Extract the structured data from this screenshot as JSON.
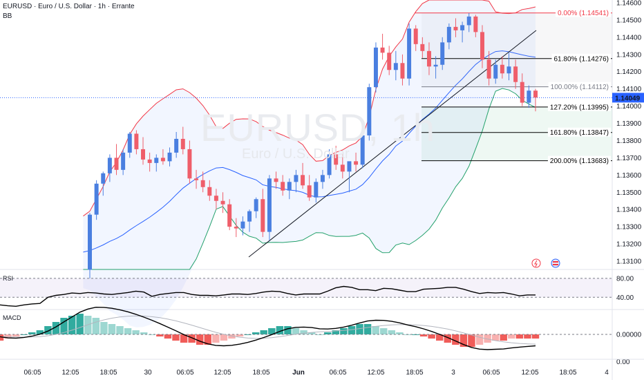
{
  "header": {
    "title": "EURUSD · Euro / U.S. Dollar · 1h · Errante",
    "indicator": "BB"
  },
  "watermark": {
    "symbol": "EURUSD, 1h",
    "name": "Euro / U.S. Dollar"
  },
  "panes": {
    "rsi_label": "RSI",
    "macd_label": "MACD"
  },
  "colors": {
    "up": "#4a7fe0",
    "down": "#ef5e6a",
    "bb_upper": "#f23645",
    "bb_basis": "#2962ff",
    "bb_lower": "#22a06b",
    "rsi_line": "#000000",
    "macd_line": "#000000",
    "signal_line": "#b2b5be",
    "hist_pos": "#26a69a",
    "hist_neg": "#ef5350",
    "price_label_bg": "#2962ff"
  },
  "chart_data": [
    {
      "type": "candlestick",
      "title": "EURUSD · Euro / U.S. Dollar · 1h · Errante",
      "y_ticks": [
        "1.14600",
        "1.14500",
        "1.14400",
        "1.14300",
        "1.14200",
        "1.14100",
        "1.14000",
        "1.13900",
        "1.13800",
        "1.13700",
        "1.13600",
        "1.13500",
        "1.13400",
        "1.13300",
        "1.13200",
        "1.13100"
      ],
      "ylim": [
        1.1307,
        1.1461
      ],
      "x_ticks": [
        "06:05",
        "12:05",
        "18:05",
        "30",
        "06:05",
        "12:05",
        "18:05",
        "Jun",
        "06:05",
        "12:05",
        "18:05",
        "3",
        "06:05",
        "12:05",
        "18:05",
        "4"
      ],
      "last_price": "1.14049",
      "candles": [
        [
          1.1305,
          1.1338,
          1.13,
          1.1337
        ],
        [
          1.1337,
          1.1357,
          1.1334,
          1.1355
        ],
        [
          1.1355,
          1.1362,
          1.1348,
          1.1361
        ],
        [
          1.1361,
          1.1372,
          1.1356,
          1.137
        ],
        [
          1.137,
          1.1378,
          1.136,
          1.1363
        ],
        [
          1.1363,
          1.1375,
          1.136,
          1.1373
        ],
        [
          1.1373,
          1.1385,
          1.137,
          1.1384
        ],
        [
          1.1384,
          1.1386,
          1.1372,
          1.1375
        ],
        [
          1.1375,
          1.1382,
          1.1366,
          1.1369
        ],
        [
          1.1369,
          1.1373,
          1.1362,
          1.1367
        ],
        [
          1.1367,
          1.1372,
          1.1362,
          1.137
        ],
        [
          1.137,
          1.1375,
          1.1366,
          1.1368
        ],
        [
          1.1368,
          1.1376,
          1.1365,
          1.1373
        ],
        [
          1.1373,
          1.1385,
          1.137,
          1.1381
        ],
        [
          1.1381,
          1.1388,
          1.1372,
          1.1375
        ],
        [
          1.1375,
          1.138,
          1.1355,
          1.1358
        ],
        [
          1.1358,
          1.1363,
          1.1352,
          1.1357
        ],
        [
          1.1357,
          1.1362,
          1.135,
          1.1353
        ],
        [
          1.1353,
          1.1357,
          1.1345,
          1.1348
        ],
        [
          1.1348,
          1.1352,
          1.134,
          1.1345
        ],
        [
          1.1345,
          1.135,
          1.1338,
          1.1343
        ],
        [
          1.1343,
          1.1346,
          1.1328,
          1.133
        ],
        [
          1.133,
          1.1335,
          1.1324,
          1.1329
        ],
        [
          1.1329,
          1.1336,
          1.1325,
          1.1333
        ],
        [
          1.1333,
          1.134,
          1.1327,
          1.1339
        ],
        [
          1.1339,
          1.1347,
          1.1335,
          1.1346
        ],
        [
          1.1346,
          1.1352,
          1.1324,
          1.1327
        ],
        [
          1.1327,
          1.136,
          1.1322,
          1.1358
        ],
        [
          1.1358,
          1.1362,
          1.1352,
          1.1356
        ],
        [
          1.1356,
          1.136,
          1.1348,
          1.1351
        ],
        [
          1.1351,
          1.1358,
          1.1346,
          1.1356
        ],
        [
          1.1356,
          1.1363,
          1.135,
          1.136
        ],
        [
          1.136,
          1.1367,
          1.1352,
          1.1354
        ],
        [
          1.1354,
          1.136,
          1.1345,
          1.1347
        ],
        [
          1.1347,
          1.1358,
          1.1344,
          1.1356
        ],
        [
          1.1356,
          1.1363,
          1.1352,
          1.136
        ],
        [
          1.136,
          1.1375,
          1.1358,
          1.1372
        ],
        [
          1.1372,
          1.1377,
          1.1363,
          1.1366
        ],
        [
          1.1366,
          1.1372,
          1.1358,
          1.1362
        ],
        [
          1.1362,
          1.1367,
          1.135,
          1.1368
        ],
        [
          1.1368,
          1.1373,
          1.1362,
          1.1366
        ],
        [
          1.1366,
          1.1385,
          1.1364,
          1.1383
        ],
        [
          1.1383,
          1.1413,
          1.138,
          1.1411
        ],
        [
          1.1411,
          1.1437,
          1.1408,
          1.1434
        ],
        [
          1.1434,
          1.1442,
          1.1427,
          1.1431
        ],
        [
          1.1431,
          1.1435,
          1.1418,
          1.1421
        ],
        [
          1.1421,
          1.1432,
          1.1415,
          1.1425
        ],
        [
          1.1425,
          1.143,
          1.1412,
          1.1416
        ],
        [
          1.1416,
          1.1448,
          1.1412,
          1.1445
        ],
        [
          1.1445,
          1.1447,
          1.1432,
          1.1436
        ],
        [
          1.1436,
          1.144,
          1.1428,
          1.1432
        ],
        [
          1.1432,
          1.1437,
          1.1418,
          1.1423
        ],
        [
          1.1423,
          1.1429,
          1.1416,
          1.1424
        ],
        [
          1.1424,
          1.144,
          1.1421,
          1.1437
        ],
        [
          1.1437,
          1.1448,
          1.1433,
          1.1446
        ],
        [
          1.1446,
          1.1451,
          1.144,
          1.1444
        ],
        [
          1.1444,
          1.1449,
          1.1437,
          1.1447
        ],
        [
          1.1447,
          1.1454,
          1.1443,
          1.1452
        ],
        [
          1.1452,
          1.1453,
          1.144,
          1.1443
        ],
        [
          1.1443,
          1.1447,
          1.1422,
          1.1427
        ],
        [
          1.1427,
          1.1432,
          1.1412,
          1.1416
        ],
        [
          1.1416,
          1.1427,
          1.1413,
          1.1424
        ],
        [
          1.1424,
          1.1429,
          1.1416,
          1.1419
        ],
        [
          1.1419,
          1.1431,
          1.1415,
          1.1423
        ],
        [
          1.1423,
          1.1427,
          1.141,
          1.1414
        ],
        [
          1.1414,
          1.1419,
          1.14,
          1.1402
        ],
        [
          1.1402,
          1.1412,
          1.1399,
          1.1409
        ],
        [
          1.1409,
          1.141,
          1.1397,
          1.1405
        ]
      ],
      "fib_levels": [
        {
          "label": "0.00% (1.14541)",
          "price": 1.14541,
          "color": "#f23645"
        },
        {
          "label": "61.80% (1.14276)",
          "price": 1.14276,
          "color": "#000000"
        },
        {
          "label": "100.00% (1.14112)",
          "price": 1.14112,
          "color": "#787b86"
        },
        {
          "label": "127.20% (1.13995)",
          "price": 1.13995,
          "color": "#000000"
        },
        {
          "label": "161.80% (1.13847)",
          "price": 1.13847,
          "color": "#000000"
        },
        {
          "label": "200.00% (1.13683)",
          "price": 1.13683,
          "color": "#000000"
        }
      ]
    },
    {
      "type": "line",
      "title": "RSI",
      "y_ticks": [
        "80.00",
        "40.00"
      ],
      "ylim": [
        20,
        90
      ],
      "values": [
        24,
        22,
        21,
        24,
        26,
        27,
        40,
        44,
        46,
        49,
        48,
        50,
        49,
        47,
        46,
        48,
        50,
        53,
        51,
        42,
        46,
        48,
        50,
        50,
        46,
        44,
        44,
        43,
        45,
        47,
        47,
        46,
        48,
        51,
        53,
        52,
        48,
        45,
        47,
        47,
        47,
        53,
        60,
        63,
        61,
        56,
        56,
        54,
        59,
        58,
        55,
        52,
        52,
        57,
        58,
        59,
        61,
        61,
        57,
        52,
        48,
        50,
        49,
        50,
        47,
        43,
        45,
        45
      ]
    },
    {
      "type": "bar",
      "title": "MACD",
      "y_ticks": [
        "0.00000",
        "0.00"
      ],
      "values": [
        -3,
        -2,
        -1,
        0,
        1,
        2,
        4,
        6,
        8,
        9,
        10,
        9,
        8,
        6,
        5,
        4,
        3,
        2,
        1,
        0,
        -1,
        -2,
        -3,
        -4,
        -4,
        -5,
        -5,
        -4,
        -3,
        -2,
        -1,
        0,
        1,
        2,
        3,
        4,
        4,
        3,
        2,
        1,
        0,
        1,
        2,
        3,
        4,
        5,
        5,
        4,
        3,
        2,
        1,
        0,
        0,
        -1,
        -2,
        -3,
        -4,
        -5,
        -6,
        -6,
        -5,
        -4,
        -3,
        -3,
        -2,
        -2,
        -2,
        -2
      ]
    }
  ]
}
